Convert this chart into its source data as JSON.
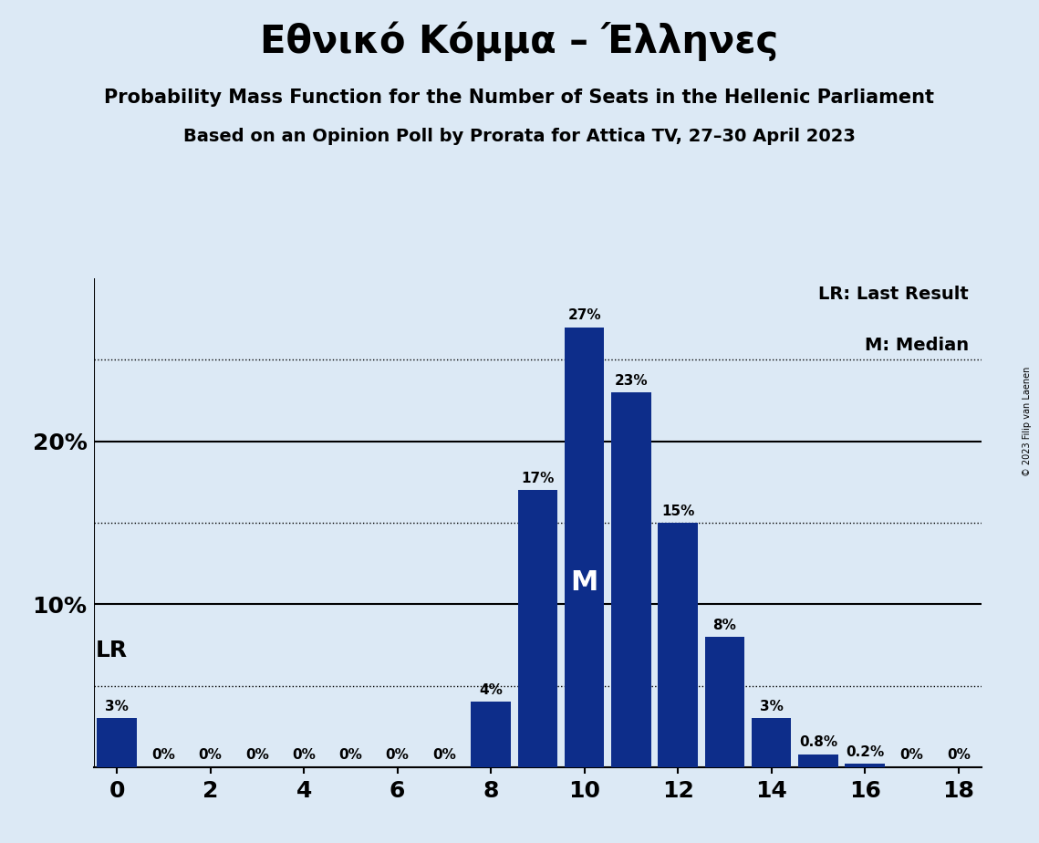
{
  "title": "Εθνικό Κόμμα – Έλληνες",
  "subtitle1": "Probability Mass Function for the Number of Seats in the Hellenic Parliament",
  "subtitle2": "Based on an Opinion Poll by Prorata for Attica TV, 27–30 April 2023",
  "copyright": "© 2023 Filip van Laenen",
  "seats": [
    0,
    1,
    2,
    3,
    4,
    5,
    6,
    7,
    8,
    9,
    10,
    11,
    12,
    13,
    14,
    15,
    16,
    17,
    18
  ],
  "probabilities": [
    3,
    0,
    0,
    0,
    0,
    0,
    0,
    0,
    4,
    17,
    27,
    23,
    15,
    8,
    3,
    0.8,
    0.2,
    0,
    0
  ],
  "bar_color": "#0D2D8A",
  "bg_color": "#DCE9F5",
  "lr_seat": 0,
  "median_seat": 10,
  "legend_lr": "LR: Last Result",
  "legend_m": "M: Median",
  "dotted_lines": [
    5,
    15,
    25
  ],
  "solid_lines": [
    10,
    20
  ],
  "xlim": [
    -0.5,
    18.5
  ],
  "ylim": [
    0,
    30
  ],
  "title_fontsize": 30,
  "subtitle1_fontsize": 15,
  "subtitle2_fontsize": 14,
  "bar_label_fontsize": 11,
  "tick_fontsize": 18,
  "legend_fontsize": 14,
  "lr_fontsize": 18,
  "m_fontsize": 22,
  "copyright_fontsize": 7
}
